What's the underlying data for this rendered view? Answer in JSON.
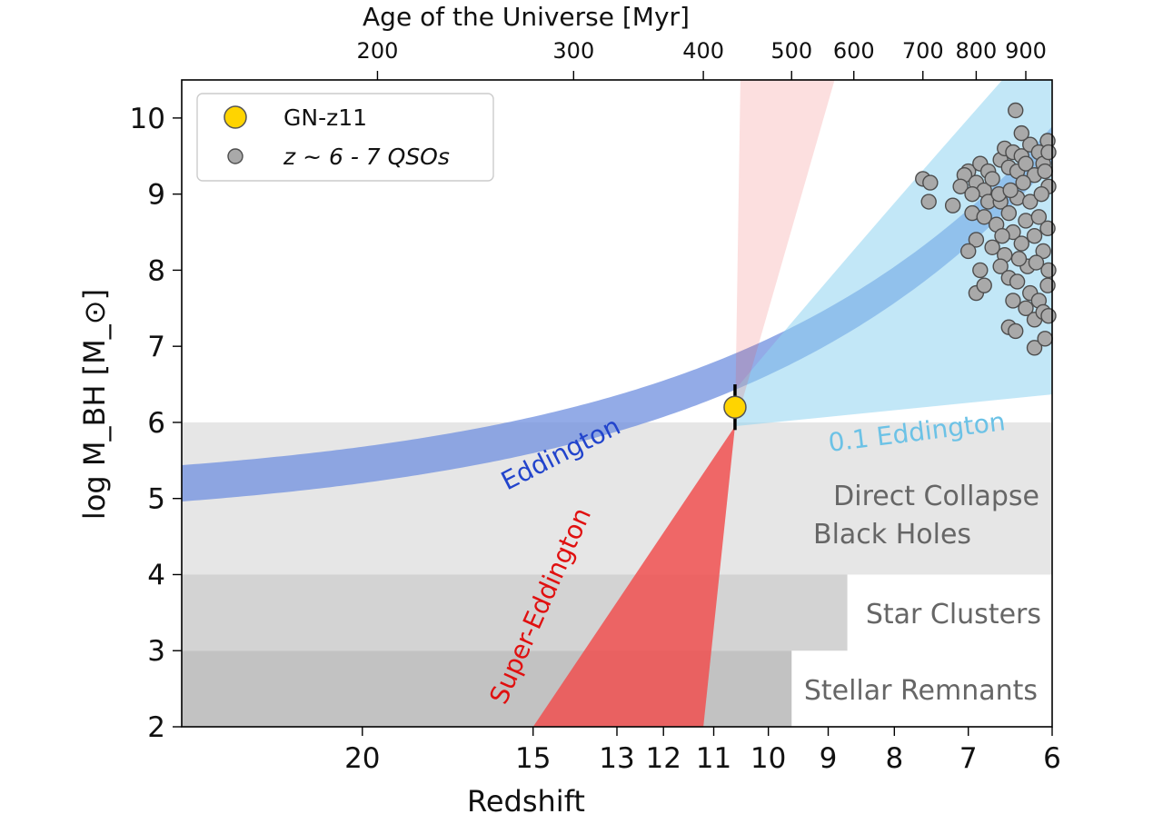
{
  "chart_data": {
    "type": "scatter",
    "title": "",
    "xlabel": "Redshift",
    "ylabel": "log M_BH  [M_⊙]",
    "top_xlabel": "Age of the Universe [Myr]",
    "xscale": "log(1+z), reversed",
    "xlim": [
      27,
      6
    ],
    "ylim": [
      2,
      10.5
    ],
    "x_ticks": [
      "20",
      "15",
      "13",
      "12",
      "11",
      "10",
      "9",
      "8",
      "7",
      "6"
    ],
    "y_ticks": [
      "2",
      "3",
      "4",
      "5",
      "6",
      "7",
      "8",
      "9",
      "10"
    ],
    "top_ticks": [
      {
        "label": "200",
        "z": 19.5
      },
      {
        "label": "300",
        "z": 14.0
      },
      {
        "label": "400",
        "z": 11.2
      },
      {
        "label": "500",
        "z": 9.6
      },
      {
        "label": "600",
        "z": 8.6
      },
      {
        "label": "700",
        "z": 7.6
      },
      {
        "label": "800",
        "z": 6.9
      },
      {
        "label": "900",
        "z": 6.3
      }
    ],
    "regions": [
      {
        "name": "Direct Collapse\nBlack Holes",
        "line1": "Direct Collapse",
        "line2": "Black Holes",
        "z_from": 27,
        "z_to": 6,
        "y_from": 4,
        "y_to": 6,
        "color": "#e6e6e6"
      },
      {
        "name": "Star Clusters",
        "z_from": 27,
        "z_to": 8.7,
        "y_from": 3,
        "y_to": 4,
        "color": "#d3d3d3"
      },
      {
        "name": "Stellar Remnants",
        "z_from": 27,
        "z_to": 9.6,
        "y_from": 2,
        "y_to": 3,
        "color": "#c2c2c2"
      }
    ],
    "bands": {
      "eddington": {
        "label": "Eddington",
        "color": "#6f8fdf",
        "label_color": "#2244cc"
      },
      "tenth_eddington": {
        "label": "0.1 Eddington",
        "color": "#8fd3f1",
        "label_color": "#6cc2e6"
      },
      "super_eddington": {
        "label": "Super-Eddington",
        "color": "#f05050",
        "label_color": "#e01010"
      }
    },
    "series": [
      {
        "name": "GN-z11",
        "marker": "circle-large",
        "color": "#ffd400",
        "points": [
          {
            "z": 10.6,
            "logM": 6.2,
            "err_low": 5.9,
            "err_high": 6.5
          }
        ]
      },
      {
        "name": "z ~ 6 - 7 QSOs",
        "marker": "circle-small",
        "color": "#a9a9a9",
        "points": [
          [
            7.6,
            9.2
          ],
          [
            7.5,
            9.15
          ],
          [
            7.52,
            8.9
          ],
          [
            7.0,
            9.3
          ],
          [
            7.05,
            9.25
          ],
          [
            6.9,
            9.15
          ],
          [
            6.85,
            9.4
          ],
          [
            6.8,
            9.05
          ],
          [
            6.75,
            9.3
          ],
          [
            6.7,
            9.2
          ],
          [
            6.6,
            9.45
          ],
          [
            6.55,
            9.6
          ],
          [
            6.5,
            9.35
          ],
          [
            6.45,
            9.55
          ],
          [
            6.42,
            10.1
          ],
          [
            6.4,
            9.3
          ],
          [
            6.35,
            9.5
          ],
          [
            6.3,
            9.4
          ],
          [
            6.25,
            9.65
          ],
          [
            6.2,
            9.25
          ],
          [
            6.15,
            9.55
          ],
          [
            6.1,
            9.4
          ],
          [
            6.05,
            9.7
          ],
          [
            6.03,
            9.1
          ],
          [
            6.95,
            8.75
          ],
          [
            6.9,
            8.4
          ],
          [
            6.8,
            8.7
          ],
          [
            6.75,
            8.9
          ],
          [
            6.7,
            8.3
          ],
          [
            6.65,
            8.6
          ],
          [
            6.6,
            8.9
          ],
          [
            6.55,
            8.2
          ],
          [
            6.5,
            8.75
          ],
          [
            6.45,
            8.5
          ],
          [
            6.4,
            8.95
          ],
          [
            6.35,
            8.35
          ],
          [
            6.3,
            8.65
          ],
          [
            6.25,
            8.9
          ],
          [
            6.2,
            8.45
          ],
          [
            6.15,
            8.7
          ],
          [
            6.1,
            8.25
          ],
          [
            6.05,
            8.55
          ],
          [
            7.0,
            8.25
          ],
          [
            6.9,
            7.7
          ],
          [
            6.8,
            7.8
          ],
          [
            6.85,
            8.0
          ],
          [
            6.6,
            8.05
          ],
          [
            6.5,
            7.9
          ],
          [
            6.45,
            7.6
          ],
          [
            6.4,
            7.85
          ],
          [
            6.3,
            7.5
          ],
          [
            6.25,
            7.7
          ],
          [
            6.2,
            7.35
          ],
          [
            6.15,
            7.6
          ],
          [
            6.1,
            7.45
          ],
          [
            6.05,
            7.8
          ],
          [
            6.5,
            7.25
          ],
          [
            6.42,
            7.2
          ],
          [
            6.2,
            6.98
          ],
          [
            6.08,
            7.1
          ],
          [
            6.35,
            9.8
          ],
          [
            6.28,
            8.05
          ],
          [
            6.12,
            9.0
          ],
          [
            6.02,
            8.0
          ],
          [
            6.02,
            7.4
          ],
          [
            7.1,
            9.1
          ],
          [
            7.2,
            8.85
          ],
          [
            6.95,
            9.0
          ],
          [
            6.62,
            9.0
          ],
          [
            6.58,
            8.45
          ],
          [
            6.38,
            8.15
          ],
          [
            6.18,
            8.1
          ],
          [
            6.08,
            9.3
          ],
          [
            6.02,
            9.55
          ],
          [
            6.33,
            9.15
          ],
          [
            6.48,
            9.05
          ]
        ]
      }
    ],
    "legend": {
      "position": "top-left",
      "entries": [
        {
          "label": "GN-z11",
          "marker": "circle-large",
          "color": "#ffd400"
        },
        {
          "label": "z ~ 6 - 7 QSOs",
          "marker": "circle-small",
          "color": "#a9a9a9"
        }
      ]
    }
  }
}
